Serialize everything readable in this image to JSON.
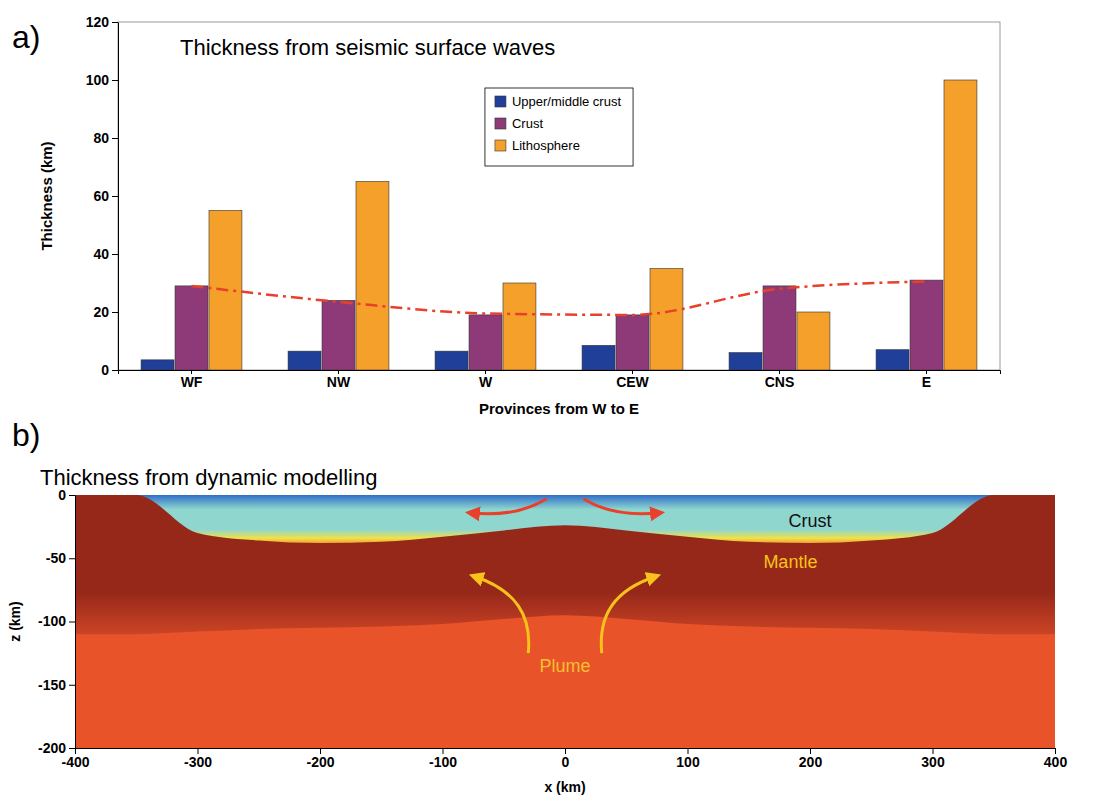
{
  "chart_data": [
    {
      "panel_label": "a)",
      "type": "bar",
      "title": "Thickness from seismic surface waves",
      "x_label": "Provinces from W to E",
      "y_label": "Thickness (km)",
      "categories": [
        "WF",
        "NW",
        "W",
        "CEW",
        "CNS",
        "E"
      ],
      "series": [
        {
          "name": "Upper/middle crust",
          "color": "#1f3f99",
          "values": [
            3.5,
            6.5,
            6.5,
            8.5,
            6,
            7
          ]
        },
        {
          "name": "Crust",
          "color": "#8e3a78",
          "values": [
            29,
            24,
            19,
            19,
            29,
            31
          ]
        },
        {
          "name": "Lithosphere",
          "color": "#f5a02a",
          "values": [
            55,
            65,
            30,
            35,
            20,
            100
          ]
        },
        {
          "type": "line",
          "line_style": "dash-dot",
          "color": "#e8402a",
          "values": [
            29,
            23.5,
            19.5,
            19,
            28,
            30.5
          ]
        }
      ],
      "ylim": [
        0,
        120
      ],
      "yticks": [
        0,
        20,
        40,
        60,
        80,
        100,
        120
      ],
      "legend": "top",
      "grid": false
    },
    {
      "panel_label": "b)",
      "type": "area",
      "title": "Thickness from dynamic modelling",
      "x_label": "x (km)",
      "y_label": "z (km)",
      "color": "#e8532a",
      "x": [
        -400,
        -350,
        -300,
        -250,
        -200,
        -150,
        -100,
        -50,
        0,
        50,
        100,
        150,
        200,
        250,
        300,
        350,
        400
      ],
      "series": [
        {
          "color": "#8fd6cf",
          "values": [
            0,
            0,
            -30,
            -36,
            -38,
            -37,
            -33,
            -28,
            -24,
            -28,
            -33,
            -37,
            -38,
            -36,
            -30,
            0,
            0
          ]
        },
        {
          "color": "#96281a",
          "values": [
            -110,
            -110,
            -108,
            -106,
            -105,
            -104,
            -102,
            -98,
            -95,
            -98,
            -102,
            -104,
            -105,
            -106,
            -108,
            -110,
            -110
          ]
        }
      ],
      "xlim": [
        -400,
        400
      ],
      "xticks": [
        -400,
        -300,
        -200,
        -100,
        0,
        100,
        200,
        300,
        400
      ],
      "ylim": [
        -200,
        0
      ],
      "yticks": [
        -200,
        -150,
        -100,
        -50,
        0
      ],
      "annotations": [
        {
          "text": "Crust",
          "x": 200,
          "y": -25,
          "color": "#111111"
        },
        {
          "text": "Mantle",
          "x": 184,
          "y": -58,
          "color": "#f7c21a"
        },
        {
          "text": "Plume",
          "x": 0,
          "y": -140,
          "color": "#f5c030"
        }
      ]
    }
  ]
}
